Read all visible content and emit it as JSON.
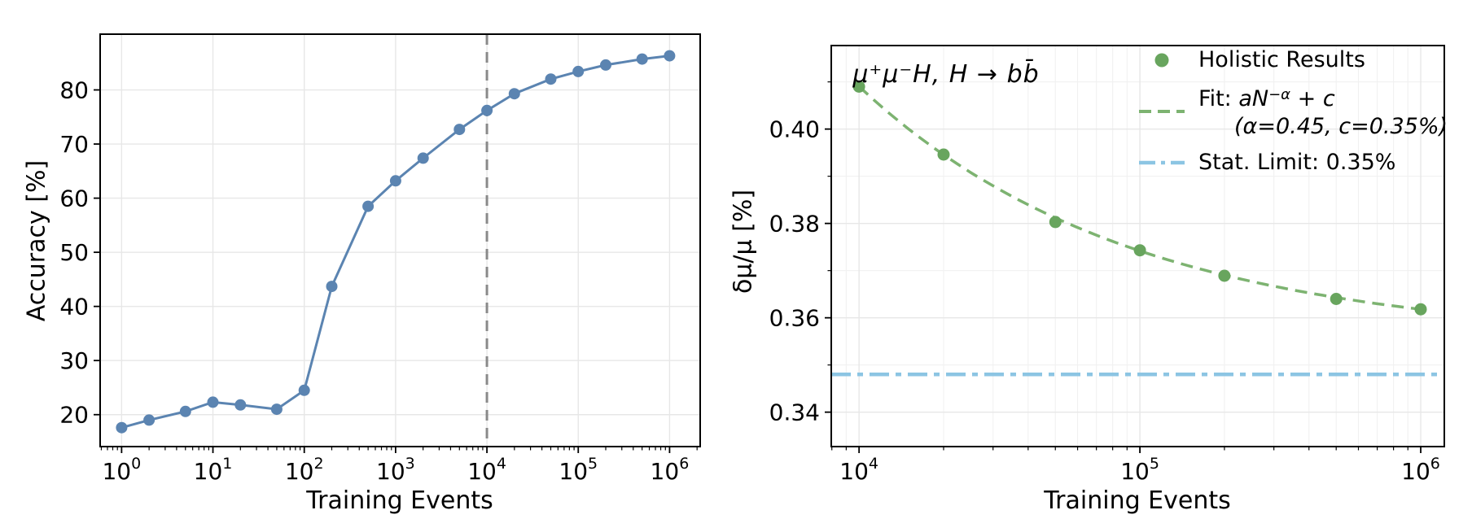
{
  "figure": {
    "background": "#ffffff"
  },
  "chart_data": [
    {
      "id": "accuracy-vs-training-events",
      "type": "line",
      "title": "",
      "xlabel": "Training Events",
      "ylabel": "Accuracy [%]",
      "xscale": "log",
      "xlim_log": [
        -0.235,
        6.335
      ],
      "ylim": [
        14.1,
        90.3
      ],
      "xtick_exponents": [
        0,
        1,
        2,
        3,
        4,
        5,
        6
      ],
      "yticks": [
        20,
        30,
        40,
        50,
        60,
        70,
        80
      ],
      "ytick_format": "int",
      "grid": "major-only",
      "series": [
        {
          "name": "accuracy",
          "marker": "circle",
          "x": [
            1,
            2,
            5,
            10,
            20,
            50,
            100,
            200,
            500,
            1000,
            2000,
            5000,
            10000,
            20000,
            50000,
            100000,
            200000,
            500000,
            1000000
          ],
          "y": [
            17.6,
            19.0,
            20.6,
            22.3,
            21.8,
            21.0,
            24.5,
            43.7,
            58.5,
            63.2,
            67.4,
            72.7,
            76.2,
            79.3,
            82.0,
            83.4,
            84.6,
            85.7,
            86.3
          ]
        }
      ],
      "vline_x": 10000,
      "colors": {
        "line": "#5b84b1",
        "marker": "#5b84b1",
        "vline": "#8a8a8a",
        "grid": "#e7e7e7",
        "spine": "#000000"
      }
    },
    {
      "id": "muon-resolution-vs-training-events",
      "type": "scatter+fit",
      "title": "",
      "xlabel": "Training Events",
      "ylabel": "δμ/μ [%]",
      "annotation": "μ⁺μ⁻H, H → bb̄",
      "xscale": "log",
      "xlim_log": [
        3.901,
        6.084
      ],
      "ylim": [
        0.3327,
        0.4177
      ],
      "xtick_exponents": [
        4,
        5,
        6
      ],
      "yticks": [
        0.34,
        0.36,
        0.38,
        0.4
      ],
      "yticks_minor": [
        0.35,
        0.37,
        0.39,
        0.41
      ],
      "ytick_format": "2dec",
      "grid": "major+minor",
      "series": [
        {
          "name": "Holistic Results",
          "type": "scatter",
          "x": [
            10000,
            20000,
            50000,
            100000,
            200000,
            500000,
            1000000
          ],
          "y": [
            0.409,
            0.3946,
            0.3803,
            0.3743,
            0.3689,
            0.364,
            0.3618
          ]
        }
      ],
      "fit": {
        "a": 3.41,
        "alpha": 0.45,
        "c": 0.355
      },
      "stat_limit_y": 0.348,
      "legend": {
        "holistic_label": "Holistic Results",
        "holistic_icon": "dot-marker-icon",
        "fit_prefix": "Fit: ",
        "fit_math1": "aN",
        "fit_sup": "−α",
        "fit_math2": " + c",
        "fit_detail": "(α=0.45, c=0.35%)",
        "fit_icon": "dashed-line-icon",
        "stat_label": "Stat. Limit: 0.35%",
        "stat_icon": "dashdot-line-icon"
      },
      "colors": {
        "marker": "#68a55e",
        "fit": "#7db371",
        "stat": "#8cc5e3",
        "grid": "#e7e7e7",
        "grid_minor": "#f1f1f1",
        "spine": "#000000"
      }
    }
  ]
}
